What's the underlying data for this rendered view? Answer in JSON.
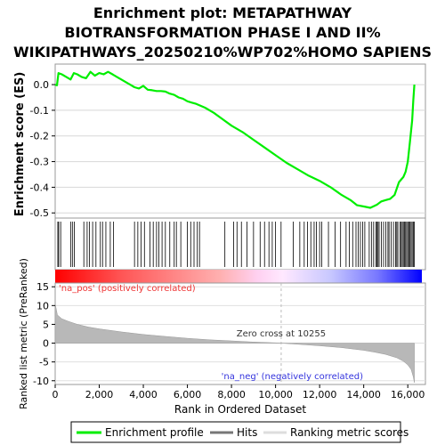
{
  "chart_data": {
    "type": "line",
    "title_lines": [
      "Enrichment plot: METAPATHWAY",
      "BIOTRANSFORMATION PHASE I AND II%",
      "WIKIPATHWAYS_20250210%WP702%HOMO SAPIENS"
    ],
    "es_panel": {
      "ylabel": "Enrichment score (ES)",
      "ylim": [
        -0.52,
        0.08
      ],
      "yticks": [
        0.0,
        -0.1,
        -0.2,
        -0.3,
        -0.4,
        -0.5
      ],
      "ytick_labels": [
        "0.0",
        "-0.1",
        "-0.2",
        "-0.3",
        "-0.4",
        "-0.5"
      ],
      "series": [
        {
          "name": "Enrichment profile",
          "color": "#00ee00",
          "x": [
            0,
            80,
            150,
            300,
            500,
            700,
            850,
            1000,
            1200,
            1400,
            1600,
            1800,
            2000,
            2200,
            2400,
            2600,
            2800,
            3000,
            3200,
            3400,
            3600,
            3800,
            4000,
            4200,
            4400,
            4600,
            4800,
            5000,
            5200,
            5400,
            5600,
            5800,
            6000,
            6200,
            6400,
            6800,
            7200,
            7600,
            8000,
            8500,
            9000,
            9500,
            10000,
            10500,
            11000,
            11500,
            12000,
            12500,
            13000,
            13400,
            13700,
            14000,
            14300,
            14600,
            14800,
            15000,
            15200,
            15400,
            15600,
            15800,
            15900,
            16000,
            16100,
            16200,
            16250,
            16300
          ],
          "y": [
            0.0,
            -0.003,
            0.045,
            0.04,
            0.03,
            0.02,
            0.045,
            0.04,
            0.03,
            0.025,
            0.05,
            0.035,
            0.045,
            0.04,
            0.05,
            0.04,
            0.03,
            0.02,
            0.01,
            0.0,
            -0.01,
            -0.015,
            -0.005,
            -0.02,
            -0.022,
            -0.025,
            -0.025,
            -0.027,
            -0.035,
            -0.04,
            -0.05,
            -0.055,
            -0.065,
            -0.07,
            -0.075,
            -0.09,
            -0.11,
            -0.135,
            -0.16,
            -0.185,
            -0.215,
            -0.245,
            -0.275,
            -0.305,
            -0.33,
            -0.355,
            -0.375,
            -0.4,
            -0.43,
            -0.45,
            -0.47,
            -0.475,
            -0.48,
            -0.468,
            -0.455,
            -0.45,
            -0.445,
            -0.43,
            -0.38,
            -0.36,
            -0.34,
            -0.3,
            -0.22,
            -0.14,
            -0.06,
            0.0
          ]
        }
      ]
    },
    "hits_panel": {
      "legend_name": "Hits",
      "hit_positions": [
        120,
        160,
        250,
        700,
        780,
        870,
        1300,
        1450,
        1550,
        1700,
        1850,
        2050,
        2150,
        2300,
        2500,
        2650,
        3600,
        3750,
        3900,
        4050,
        4300,
        4450,
        4600,
        4700,
        4850,
        5000,
        5200,
        5400,
        5500,
        5700,
        6000,
        6150,
        6300,
        6450,
        6550,
        7700,
        8100,
        8250,
        8450,
        8700,
        9000,
        9300,
        9500,
        9700,
        9850,
        10000,
        10250,
        10800,
        11100,
        11300,
        11450,
        11600,
        11750,
        11850,
        12000,
        12100,
        12400,
        12700,
        12950,
        13200,
        13350,
        13500,
        13650,
        13750,
        13850,
        13950,
        14050,
        14250,
        14350,
        14450,
        14550,
        14600,
        14650,
        14700,
        14800,
        14900,
        15000,
        15100,
        15150,
        15250,
        15350,
        15450,
        15500,
        15550,
        15650,
        15700,
        15750,
        15800,
        15850,
        15900,
        15950,
        16000,
        16050,
        16100,
        16150,
        16200,
        16250,
        16300
      ]
    },
    "metric_panel": {
      "ylabel": "Ranked list metric (PreRanked)",
      "ylim": [
        -11,
        16
      ],
      "yticks": [
        15,
        10,
        5,
        0,
        -5,
        -10
      ],
      "ytick_labels": [
        "15",
        "10",
        "5",
        "0",
        "-5",
        "-10"
      ],
      "legend_name": "Ranking metric scores",
      "pos_label": "'na_pos' (positively correlated)",
      "neg_label": "'na_neg' (negatively correlated)",
      "zero_cross_label": "Zero cross at 10255",
      "zero_cross": 10255,
      "metric_x": [
        0,
        100,
        300,
        600,
        1000,
        1500,
        2000,
        3000,
        4000,
        5000,
        6000,
        7000,
        8000,
        9000,
        10000,
        10255,
        11000,
        12000,
        13000,
        14000,
        14500,
        15000,
        15500,
        15800,
        16000,
        16150,
        16250,
        16300
      ],
      "metric_y": [
        10.5,
        7.5,
        6.5,
        5.8,
        5.0,
        4.3,
        3.8,
        3.0,
        2.3,
        1.8,
        1.3,
        0.9,
        0.6,
        0.3,
        0.08,
        0.0,
        -0.3,
        -0.7,
        -1.2,
        -1.9,
        -2.4,
        -3.0,
        -3.9,
        -4.8,
        -5.8,
        -7.0,
        -9.0,
        -10.5
      ]
    },
    "xaxis": {
      "label": "Rank in Ordered Dataset",
      "xlim": [
        0,
        16800
      ],
      "ticks": [
        0,
        2000,
        4000,
        6000,
        8000,
        10000,
        12000,
        14000,
        16000
      ],
      "tick_labels": [
        "0",
        "2,000",
        "4,000",
        "6,000",
        "8,000",
        "10,000",
        "12,000",
        "14,000",
        "16,000"
      ]
    },
    "legend": {
      "position": "bottom",
      "items": [
        "Enrichment profile",
        "Hits",
        "Ranking metric scores"
      ]
    },
    "colors": {
      "profile": "#00ee00",
      "hits": "#000000",
      "metric_fill": "#b8b8b8",
      "zero_line": "#bbbbbb",
      "pos_text": "#ee3333",
      "neg_text": "#3333dd",
      "heat_pos": "#ff0000",
      "heat_neg": "#0000ff"
    }
  }
}
